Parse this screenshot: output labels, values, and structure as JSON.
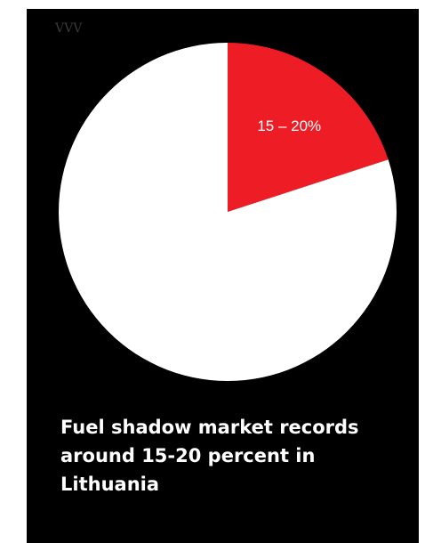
{
  "watermark": "VVV",
  "headline": "Fuel shadow market records around 15-20 percent in Lithuania",
  "colors": {
    "background": "#000000",
    "highlight": "#ee1c25",
    "rest": "#ffffff"
  },
  "chart_data": {
    "type": "pie",
    "title": "",
    "slices": [
      {
        "label": "15 – 20%",
        "value": 20,
        "color": "#ee1c25"
      },
      {
        "label": "",
        "value": 80,
        "color": "#ffffff"
      }
    ],
    "start_angle": "12 o'clock",
    "direction": "clockwise",
    "legend": "none"
  }
}
